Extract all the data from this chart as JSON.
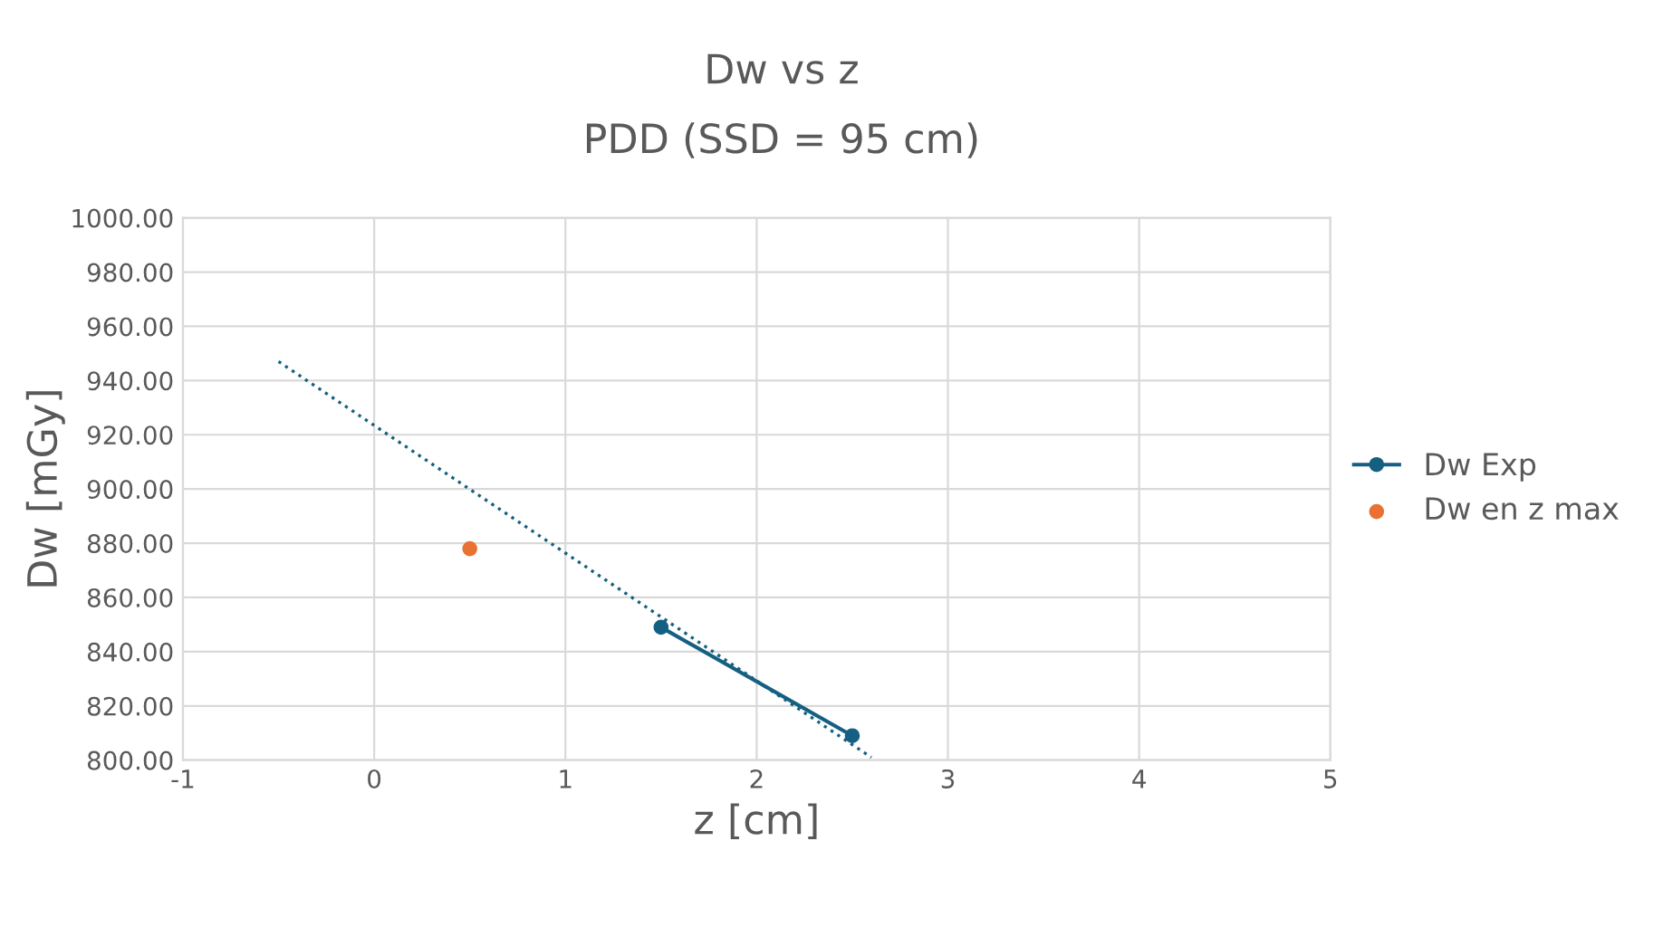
{
  "chart_data": {
    "type": "line",
    "title": "Dw vs z",
    "subtitle": "PDD (SSD = 95 cm)",
    "xlabel": "z [cm]",
    "ylabel": "Dw [mGy]",
    "xlim": [
      -1,
      5
    ],
    "xticks": [
      -1,
      0,
      1,
      2,
      3,
      4,
      5
    ],
    "ylim": [
      800,
      1000
    ],
    "yticks": [
      {
        "value": 800,
        "label": "800.00"
      },
      {
        "value": 820,
        "label": "820.00"
      },
      {
        "value": 840,
        "label": "840.00"
      },
      {
        "value": 860,
        "label": "860.00"
      },
      {
        "value": 880,
        "label": "880.00"
      },
      {
        "value": 900,
        "label": "900.00"
      },
      {
        "value": 920,
        "label": "920.00"
      },
      {
        "value": 940,
        "label": "940.00"
      },
      {
        "value": 960,
        "label": "960.00"
      },
      {
        "value": 980,
        "label": "980.00"
      },
      {
        "value": 1000,
        "label": "1000.00"
      }
    ],
    "grid": true,
    "legend": "right",
    "marker": "circle",
    "series": [
      {
        "name": "Dw Exp",
        "color": "#156082",
        "x": [
          1.5,
          2.5
        ],
        "values": [
          849,
          809
        ]
      },
      {
        "name": "Dw en z max",
        "type": "scatter",
        "color": "#e97132",
        "x": [
          0.5
        ],
        "values": [
          878
        ]
      },
      {
        "type": "line",
        "color": "#156082",
        "line_style": "dotted",
        "marker": "none",
        "x": [
          -0.5,
          2.6
        ],
        "values": [
          947,
          801
        ]
      }
    ]
  }
}
